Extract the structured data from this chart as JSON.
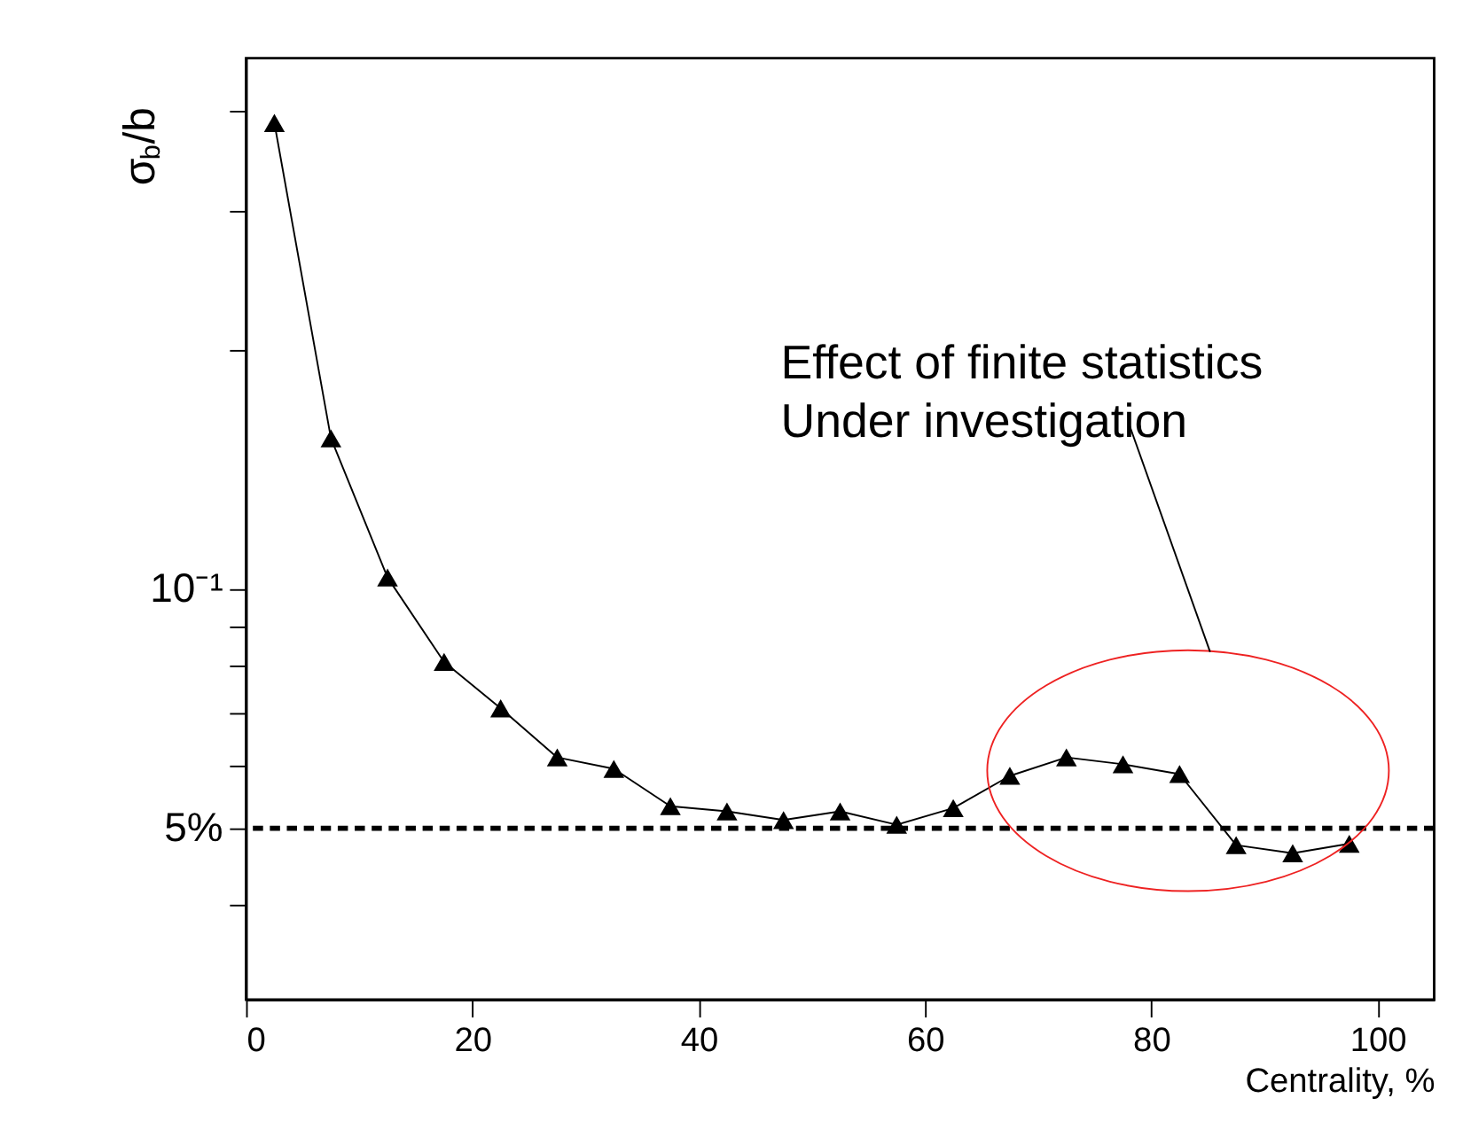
{
  "chart_data": {
    "type": "line",
    "xlabel": "Centrality, %",
    "ylabel": "σ$_{b}$/b",
    "x": [
      2.5,
      7.5,
      12.5,
      17.5,
      22.5,
      27.5,
      32.5,
      37.5,
      42.5,
      47.5,
      52.5,
      57.5,
      62.5,
      67.5,
      72.5,
      77.5,
      82.5,
      87.5,
      92.5,
      97.5
    ],
    "series": [
      {
        "color": "#000000",
        "values": [
          0.387,
          0.155,
          0.1035,
          0.081,
          0.0708,
          0.0614,
          0.0594,
          0.0533,
          0.0525,
          0.0512,
          0.0525,
          0.0505,
          0.053,
          0.0582,
          0.0614,
          0.0602,
          0.0585,
          0.0476,
          0.0465,
          0.0478
        ]
      }
    ],
    "marker": "triangle",
    "line_style": "solid",
    "log": true,
    "grid": false,
    "xlim": [
      0,
      105
    ],
    "xticks": [
      0,
      20,
      40,
      60,
      80,
      100
    ],
    "ylim": [
      0.0304,
      0.467
    ],
    "yticks": [
      {
        "value": 0.04,
        "label": null
      },
      {
        "value": 0.05,
        "label": "5%"
      },
      {
        "value": 0.06,
        "label": null
      },
      {
        "value": 0.07,
        "label": null
      },
      {
        "value": 0.08,
        "label": null
      },
      {
        "value": 0.09,
        "label": null
      },
      {
        "value": 0.1,
        "label": "10⁻¹"
      },
      {
        "value": 0.2,
        "label": null
      },
      {
        "value": 0.3,
        "label": null
      },
      {
        "value": 0.4,
        "label": null
      }
    ],
    "ref_lines": [
      {
        "axis": "y",
        "value": 0.05,
        "color": "#000000",
        "line_style": "dashed"
      }
    ],
    "annotations": [
      "Effect of finite statistics\nUnder investigation"
    ]
  }
}
